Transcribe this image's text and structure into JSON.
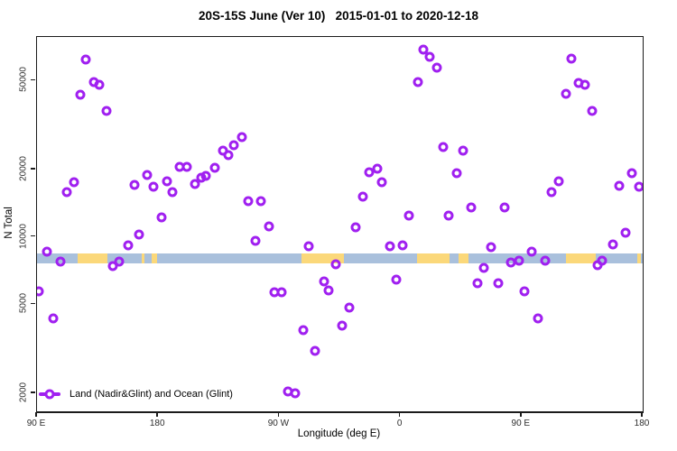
{
  "chart_data": {
    "type": "scatter",
    "title": "20S-15S June (Ver 10)   2015-01-01 to 2020-12-18",
    "x_axis": {
      "label": "Longitude (deg E)",
      "domain": [
        90,
        540
      ],
      "ticks": [
        {
          "label": "90 E",
          "deg": 90
        },
        {
          "label": "180",
          "deg": 180
        },
        {
          "label": "90 W",
          "deg": 270
        },
        {
          "label": "0",
          "deg": 360
        },
        {
          "label": "90 E",
          "deg": 450
        },
        {
          "label": "180",
          "deg": 540
        }
      ]
    },
    "y_axis": {
      "label": "N Total",
      "scale": "log",
      "domain": [
        1662,
        78300
      ],
      "ticks": [
        2000,
        5000,
        10000,
        20000,
        50000
      ]
    },
    "legend": {
      "label": "Land (Nadir&Glint) and Ocean (Glint)",
      "marker": "open-circle-on-line"
    },
    "colors": {
      "point": "#A020F0",
      "ocean_band": "#A9C0DC",
      "land_band": "#FBD87A",
      "axis": "#1B1B1B"
    },
    "surface_band": {
      "description": "ocean (blue) vs land (yellow) strip along longitude",
      "value_range": [
        7650,
        8440
      ],
      "ocean_domain": [
        90,
        540
      ],
      "land_segments": [
        [
          120,
          142.5
        ],
        [
          167.5,
          169.5
        ],
        [
          175,
          179
        ],
        [
          286.5,
          318
        ],
        [
          372.5,
          396.5
        ],
        [
          403.5,
          410.5
        ],
        [
          483,
          505
        ],
        [
          536,
          538.5
        ]
      ]
    },
    "points": [
      [
        91.3,
        5690
      ],
      [
        97.2,
        8570
      ],
      [
        101.9,
        4310
      ],
      [
        107.2,
        7740
      ],
      [
        111.9,
        15800
      ],
      [
        117.3,
        17600
      ],
      [
        122.4,
        43100
      ],
      [
        126.4,
        62100
      ],
      [
        132.5,
        49200
      ],
      [
        136.3,
        48000
      ],
      [
        141.9,
        36500
      ],
      [
        146.6,
        7380
      ],
      [
        151.1,
        7760
      ],
      [
        157.8,
        9170
      ],
      [
        162.7,
        17100
      ],
      [
        166.0,
        10300
      ],
      [
        171.7,
        19000
      ],
      [
        176.8,
        16700
      ],
      [
        182.8,
        12200
      ],
      [
        186.6,
        17800
      ],
      [
        190.6,
        15800
      ],
      [
        196.2,
        20500
      ],
      [
        201.4,
        20500
      ],
      [
        207.4,
        17200
      ],
      [
        211.9,
        18400
      ],
      [
        215.3,
        18700
      ],
      [
        222.0,
        20400
      ],
      [
        228.2,
        24300
      ],
      [
        232.4,
        23300
      ],
      [
        236.1,
        25700
      ],
      [
        242.1,
        28000
      ],
      [
        247.2,
        14500
      ],
      [
        252.2,
        9600
      ],
      [
        256.6,
        14500
      ],
      [
        262.2,
        11100
      ],
      [
        266.3,
        5640
      ],
      [
        271.8,
        5640
      ],
      [
        276.3,
        2030
      ],
      [
        281.9,
        2000
      ],
      [
        287.9,
        3830
      ],
      [
        291.9,
        9060
      ],
      [
        296.8,
        3090
      ],
      [
        303.1,
        6320
      ],
      [
        306.5,
        5760
      ],
      [
        312.0,
        7560
      ],
      [
        316.9,
        4010
      ],
      [
        322.1,
        4830
      ],
      [
        327.0,
        11000
      ],
      [
        332.2,
        15100
      ],
      [
        337.1,
        19500
      ],
      [
        342.7,
        20100
      ],
      [
        346.1,
        17600
      ],
      [
        352.1,
        9110
      ],
      [
        356.8,
        6440
      ],
      [
        361.7,
        9190
      ],
      [
        366.6,
        12500
      ],
      [
        372.9,
        49200
      ],
      [
        377.0,
        68500
      ],
      [
        381.9,
        64000
      ],
      [
        386.8,
        56900
      ],
      [
        391.5,
        25200
      ],
      [
        396.0,
        12500
      ],
      [
        401.9,
        19300
      ],
      [
        406.5,
        24400
      ],
      [
        412.7,
        13500
      ],
      [
        417.6,
        6190
      ],
      [
        422.1,
        7300
      ],
      [
        427.3,
        8970
      ],
      [
        432.9,
        6190
      ],
      [
        437.4,
        13600
      ],
      [
        442.3,
        7690
      ],
      [
        447.8,
        7850
      ],
      [
        452.3,
        5690
      ],
      [
        457.2,
        8570
      ],
      [
        462.4,
        4310
      ],
      [
        467.3,
        7810
      ],
      [
        472.4,
        15800
      ],
      [
        477.6,
        17700
      ],
      [
        483.0,
        43700
      ],
      [
        487.0,
        62500
      ],
      [
        492.1,
        48900
      ],
      [
        497.1,
        48000
      ],
      [
        502.6,
        36700
      ],
      [
        506.5,
        7450
      ],
      [
        509.8,
        7810
      ],
      [
        517.9,
        9250
      ],
      [
        522.3,
        17000
      ],
      [
        527.3,
        10400
      ],
      [
        531.7,
        19300
      ],
      [
        537.3,
        16700
      ]
    ]
  }
}
